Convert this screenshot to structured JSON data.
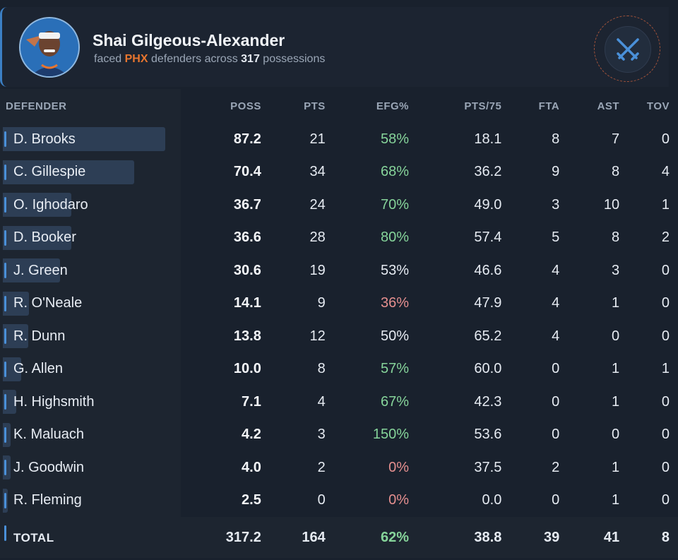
{
  "header": {
    "player_name": "Shai Gilgeous-Alexander",
    "sub_faced": "faced",
    "sub_team": "PHX",
    "sub_mid": "defenders across",
    "sub_possessions": "317",
    "sub_end": "possessions",
    "avatar_icon": "player-headshot-icon",
    "badge_icon": "crossed-swords-icon"
  },
  "table": {
    "columns": [
      "DEFENDER",
      "POSS",
      "PTS",
      "EFG%",
      "PTS/75",
      "FTA",
      "AST",
      "TOV"
    ],
    "rows": [
      {
        "defender": "D. Brooks",
        "poss": "87.2",
        "poss_value": 87.2,
        "pts": "21",
        "efg": "58%",
        "efg_tone": "good",
        "pts75": "18.1",
        "fta": "8",
        "ast": "7",
        "tov": "0"
      },
      {
        "defender": "C. Gillespie",
        "poss": "70.4",
        "poss_value": 70.4,
        "pts": "34",
        "efg": "68%",
        "efg_tone": "good",
        "pts75": "36.2",
        "fta": "9",
        "ast": "8",
        "tov": "4"
      },
      {
        "defender": "O. Ighodaro",
        "poss": "36.7",
        "poss_value": 36.7,
        "pts": "24",
        "efg": "70%",
        "efg_tone": "good",
        "pts75": "49.0",
        "fta": "3",
        "ast": "10",
        "tov": "1"
      },
      {
        "defender": "D. Booker",
        "poss": "36.6",
        "poss_value": 36.6,
        "pts": "28",
        "efg": "80%",
        "efg_tone": "good",
        "pts75": "57.4",
        "fta": "5",
        "ast": "8",
        "tov": "2"
      },
      {
        "defender": "J. Green",
        "poss": "30.6",
        "poss_value": 30.6,
        "pts": "19",
        "efg": "53%",
        "efg_tone": "neutral",
        "pts75": "46.6",
        "fta": "4",
        "ast": "3",
        "tov": "0"
      },
      {
        "defender": "R. O'Neale",
        "poss": "14.1",
        "poss_value": 14.1,
        "pts": "9",
        "efg": "36%",
        "efg_tone": "bad",
        "pts75": "47.9",
        "fta": "4",
        "ast": "1",
        "tov": "0"
      },
      {
        "defender": "R. Dunn",
        "poss": "13.8",
        "poss_value": 13.8,
        "pts": "12",
        "efg": "50%",
        "efg_tone": "neutral",
        "pts75": "65.2",
        "fta": "4",
        "ast": "0",
        "tov": "0"
      },
      {
        "defender": "G. Allen",
        "poss": "10.0",
        "poss_value": 10.0,
        "pts": "8",
        "efg": "57%",
        "efg_tone": "good",
        "pts75": "60.0",
        "fta": "0",
        "ast": "1",
        "tov": "1"
      },
      {
        "defender": "H. Highsmith",
        "poss": "7.1",
        "poss_value": 7.1,
        "pts": "4",
        "efg": "67%",
        "efg_tone": "good",
        "pts75": "42.3",
        "fta": "0",
        "ast": "1",
        "tov": "0"
      },
      {
        "defender": "K. Maluach",
        "poss": "4.2",
        "poss_value": 4.2,
        "pts": "3",
        "efg": "150%",
        "efg_tone": "good",
        "pts75": "53.6",
        "fta": "0",
        "ast": "0",
        "tov": "0"
      },
      {
        "defender": "J. Goodwin",
        "poss": "4.0",
        "poss_value": 4.0,
        "pts": "2",
        "efg": "0%",
        "efg_tone": "bad",
        "pts75": "37.5",
        "fta": "2",
        "ast": "1",
        "tov": "0"
      },
      {
        "defender": "R. Fleming",
        "poss": "2.5",
        "poss_value": 2.5,
        "pts": "0",
        "efg": "0%",
        "efg_tone": "bad",
        "pts75": "0.0",
        "fta": "0",
        "ast": "1",
        "tov": "0"
      }
    ],
    "total": {
      "defender": "TOTAL",
      "poss": "317.2",
      "pts": "164",
      "efg": "62%",
      "efg_tone": "good",
      "pts75": "38.8",
      "fta": "39",
      "ast": "41",
      "tov": "8"
    }
  },
  "colors": {
    "accent": "#4a90d9",
    "team": "#e8752e",
    "efg_good": "#86d49a",
    "efg_bad": "#e58f8f"
  }
}
